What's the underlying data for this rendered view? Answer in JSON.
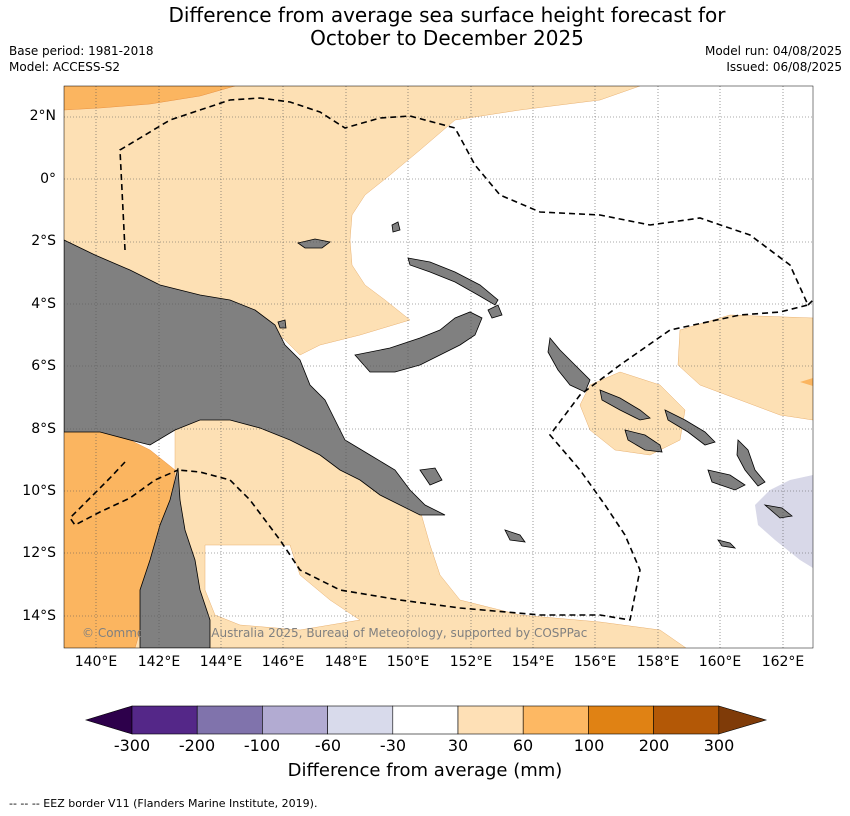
{
  "title_line1": "Difference from average sea surface height forecast for",
  "title_line2": "October to December 2025",
  "meta": {
    "base_period": "Base period: 1981-2018",
    "model": "Model: ACCESS-S2",
    "model_run": "Model run: 04/08/2025",
    "issued": "Issued: 06/08/2025"
  },
  "map": {
    "lat_labels": [
      "2°N",
      "0°",
      "2°S",
      "4°S",
      "6°S",
      "8°S",
      "10°S",
      "12°S",
      "14°S"
    ],
    "lon_labels": [
      "140°E",
      "142°E",
      "144°E",
      "146°E",
      "148°E",
      "150°E",
      "152°E",
      "154°E",
      "156°E",
      "158°E",
      "160°E",
      "162°E"
    ],
    "copyright": "© Commonwealth of Australia 2025, Bureau of Meteorology, supported by COSPPac",
    "colors": {
      "land": "#808080",
      "anom_30_60": "#fde0b4",
      "anom_60_100": "#fbb560",
      "anom_neg_60_30": "#d8d8e8",
      "neutral": "#ffffff"
    }
  },
  "colorbar": {
    "tick_labels": [
      "-300",
      "-200",
      "-100",
      "-60",
      "-30",
      "30",
      "60",
      "100",
      "200",
      "300"
    ],
    "colors": [
      "#2d004b",
      "#542788",
      "#8073ac",
      "#b2abd2",
      "#d8daeb",
      "#ffffff",
      "#fee0b6",
      "#fdb863",
      "#e08214",
      "#b35806",
      "#7f3b08"
    ],
    "title": "Difference from average (mm)"
  },
  "footnote": "--  --  -- EEZ border V11 (Flanders Marine Institute, 2019)."
}
